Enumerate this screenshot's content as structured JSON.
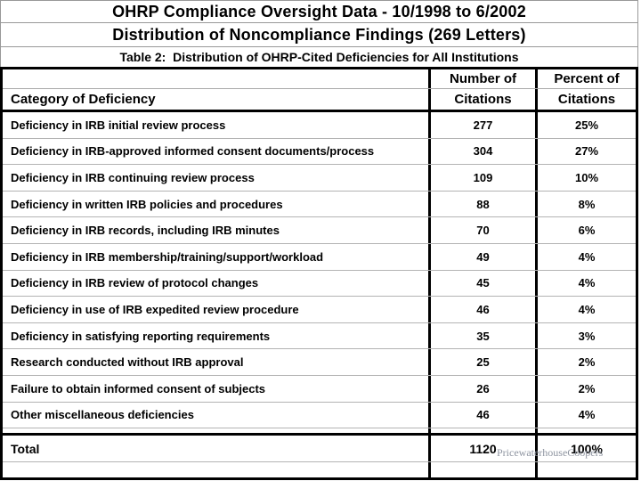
{
  "titles": {
    "line1": "OHRP Compliance Oversight Data - 10/1998 to 6/2002",
    "line2": "Distribution of Noncompliance Findings (269 Letters)",
    "caption": "Table 2:  Distribution of OHRP-Cited Deficiencies for All Institutions"
  },
  "table": {
    "header": {
      "category_label": "Category of Deficiency",
      "citations_col_line1": "Number of",
      "citations_col_line2": "Citations",
      "percent_col_line1": "Percent of",
      "percent_col_line2": "Citations"
    },
    "rows": [
      {
        "category": "Deficiency in IRB initial review process",
        "citations": "277",
        "percent": "25%"
      },
      {
        "category": "Deficiency in IRB-approved informed consent documents/process",
        "citations": "304",
        "percent": "27%"
      },
      {
        "category": "Deficiency in IRB continuing review process",
        "citations": "109",
        "percent": "10%"
      },
      {
        "category": "Deficiency in written IRB policies and procedures",
        "citations": "88",
        "percent": "8%"
      },
      {
        "category": "Deficiency in IRB records, including IRB minutes",
        "citations": "70",
        "percent": "6%"
      },
      {
        "category": "Deficiency in IRB membership/training/support/workload",
        "citations": "49",
        "percent": "4%"
      },
      {
        "category": "Deficiency in IRB review of protocol changes",
        "citations": "45",
        "percent": "4%"
      },
      {
        "category": "Deficiency in use of IRB expedited review procedure",
        "citations": "46",
        "percent": "4%"
      },
      {
        "category": "Deficiency in satisfying reporting requirements",
        "citations": "35",
        "percent": "3%"
      },
      {
        "category": "Research conducted without IRB approval",
        "citations": "25",
        "percent": "2%"
      },
      {
        "category": "Failure to obtain informed consent of subjects",
        "citations": "26",
        "percent": "2%"
      },
      {
        "category": "Other miscellaneous deficiencies",
        "citations": "46",
        "percent": "4%"
      }
    ],
    "total": {
      "label": "Total",
      "citations": "1120",
      "percent": "100%"
    }
  },
  "watermark": "PricewaterhouseCoopers",
  "colors": {
    "text": "#000000",
    "thick_border": "#000000",
    "thin_grid": "#b3b3b3",
    "title_grid": "#999999",
    "watermark_gray": "#8f95a1",
    "background": "#ffffff"
  }
}
